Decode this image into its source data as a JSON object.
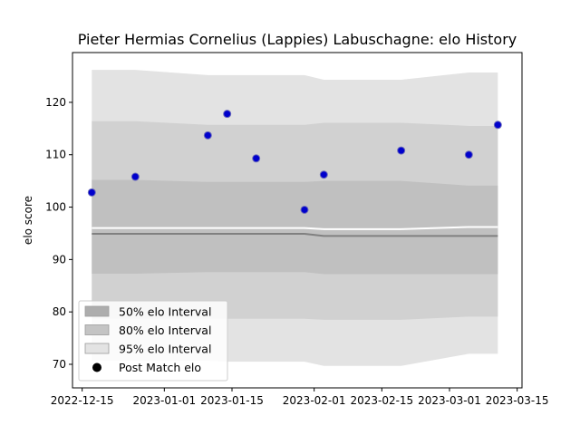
{
  "chart_data": {
    "type": "scatter",
    "title": "Pieter Hermias Cornelius (Lappies) Labuschagne: elo History",
    "xlabel": "",
    "ylabel": "elo score",
    "xlim": [
      "2022-12-13",
      "2023-03-16"
    ],
    "ylim": [
      65.5,
      129.5
    ],
    "x_ticks": [
      "2022-12-15",
      "2023-01-01",
      "2023-01-15",
      "2023-02-01",
      "2023-02-15",
      "2023-03-01",
      "2023-03-15"
    ],
    "y_ticks": [
      70,
      80,
      90,
      100,
      110,
      120
    ],
    "grid": false,
    "legend_placement": "lower-left",
    "legend": [
      {
        "label": "50% elo Interval",
        "kind": "band",
        "color": "#adadad"
      },
      {
        "label": "80% elo Interval",
        "kind": "band",
        "color": "#c4c4c4"
      },
      {
        "label": "95% elo Interval",
        "kind": "band",
        "color": "#e3e3e3"
      },
      {
        "label": "Post Match elo",
        "kind": "marker",
        "color": "#000000"
      }
    ],
    "points": {
      "name": "Post Match elo",
      "color": "#0000cc",
      "edge_color": "#6b6bbb",
      "x": [
        "2022-12-17",
        "2022-12-26",
        "2023-01-10",
        "2023-01-14",
        "2023-01-20",
        "2023-01-30",
        "2023-02-03",
        "2023-02-19",
        "2023-03-05",
        "2023-03-11"
      ],
      "y": [
        102.8,
        105.8,
        113.7,
        117.8,
        109.3,
        99.5,
        106.2,
        110.8,
        110.0,
        115.7
      ]
    },
    "median_line": {
      "color": "#808080",
      "x": [
        "2022-12-17",
        "2023-01-30",
        "2023-02-03",
        "2023-02-19",
        "2023-03-05",
        "2023-03-11"
      ],
      "y": [
        94.9,
        94.9,
        94.5,
        94.5,
        94.5,
        94.5
      ]
    },
    "white_line": {
      "color": "#ffffff",
      "x": [
        "2022-12-17",
        "2023-01-30",
        "2023-02-03",
        "2023-02-19",
        "2023-03-05",
        "2023-03-11"
      ],
      "y": [
        96.0,
        96.0,
        95.8,
        95.8,
        96.2,
        96.2
      ]
    },
    "bands": [
      {
        "label": "95% elo Interval",
        "color": "#e3e3e3",
        "x": [
          "2022-12-17",
          "2022-12-26",
          "2023-01-10",
          "2023-01-14",
          "2023-01-20",
          "2023-01-30",
          "2023-02-03",
          "2023-02-19",
          "2023-03-05",
          "2023-03-11"
        ],
        "upper": [
          126.2,
          126.2,
          125.2,
          125.2,
          125.2,
          125.2,
          124.3,
          124.3,
          125.7,
          125.7
        ],
        "lower": [
          70.7,
          70.7,
          70.7,
          70.5,
          70.5,
          70.5,
          69.7,
          69.7,
          72.0,
          72.0
        ]
      },
      {
        "label": "80% elo Interval",
        "color": "#d1d1d1",
        "x": [
          "2022-12-17",
          "2022-12-26",
          "2023-01-10",
          "2023-01-14",
          "2023-01-20",
          "2023-01-30",
          "2023-02-03",
          "2023-02-19",
          "2023-03-05",
          "2023-03-11"
        ],
        "upper": [
          116.4,
          116.4,
          115.7,
          115.7,
          115.7,
          115.7,
          116.1,
          116.1,
          115.5,
          115.5
        ],
        "lower": [
          78.7,
          78.7,
          78.7,
          78.7,
          78.7,
          78.7,
          78.5,
          78.5,
          79.1,
          79.1
        ]
      },
      {
        "label": "50% elo Interval",
        "color": "#c0c0c0",
        "x": [
          "2022-12-17",
          "2022-12-26",
          "2023-01-10",
          "2023-01-14",
          "2023-01-20",
          "2023-01-30",
          "2023-02-03",
          "2023-02-19",
          "2023-03-05",
          "2023-03-11"
        ],
        "upper": [
          105.2,
          105.2,
          104.8,
          104.8,
          104.8,
          104.8,
          105.0,
          105.0,
          104.1,
          104.1
        ],
        "lower": [
          87.3,
          87.3,
          87.6,
          87.6,
          87.6,
          87.6,
          87.2,
          87.2,
          87.2,
          87.2
        ]
      }
    ]
  }
}
